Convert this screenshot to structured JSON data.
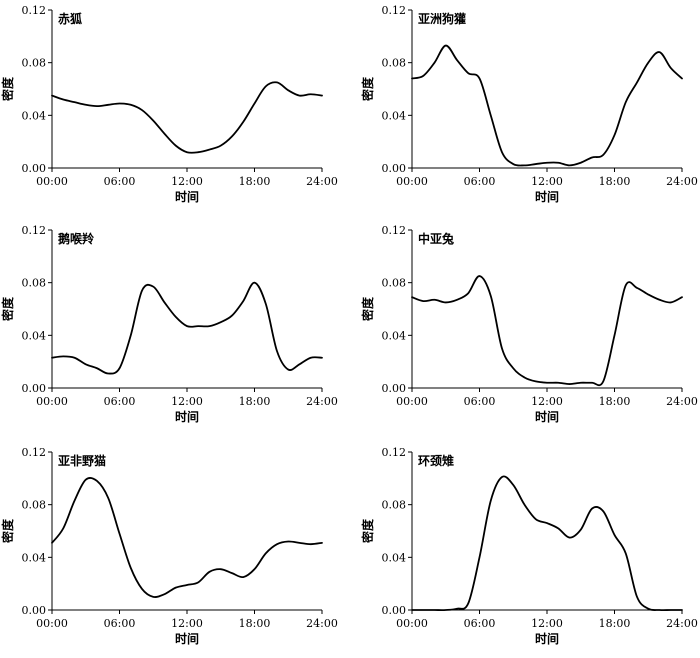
{
  "chart_data": [
    {
      "type": "line",
      "title": "赤狐",
      "xlabel": "时间",
      "ylabel": "密度",
      "xlim": [
        0,
        24
      ],
      "ylim": [
        0,
        0.12
      ],
      "xticks": [
        "00:00",
        "06:00",
        "12:00",
        "18:00",
        "24:00"
      ],
      "yticks": [
        "0.00",
        "0.04",
        "0.08",
        "0.12"
      ],
      "grid": false,
      "x": [
        0,
        1,
        2,
        3,
        4,
        5,
        6,
        7,
        8,
        9,
        10,
        11,
        12,
        13,
        14,
        15,
        16,
        17,
        18,
        19,
        20,
        21,
        22,
        23,
        24
      ],
      "y": [
        0.055,
        0.052,
        0.05,
        0.048,
        0.047,
        0.048,
        0.049,
        0.048,
        0.044,
        0.036,
        0.026,
        0.017,
        0.012,
        0.012,
        0.014,
        0.017,
        0.024,
        0.035,
        0.049,
        0.062,
        0.065,
        0.059,
        0.055,
        0.056,
        0.055
      ]
    },
    {
      "type": "line",
      "title": "亚洲狗獾",
      "xlabel": "时间",
      "ylabel": "密度",
      "xlim": [
        0,
        24
      ],
      "ylim": [
        0,
        0.12
      ],
      "xticks": [
        "00:00",
        "06:00",
        "12:00",
        "18:00",
        "24:00"
      ],
      "yticks": [
        "0.00",
        "0.04",
        "0.08",
        "0.12"
      ],
      "grid": false,
      "x": [
        0,
        1,
        2,
        3,
        4,
        5,
        6,
        7,
        8,
        9,
        10,
        11,
        12,
        13,
        14,
        15,
        16,
        17,
        18,
        19,
        20,
        21,
        22,
        23,
        24
      ],
      "y": [
        0.068,
        0.07,
        0.08,
        0.093,
        0.082,
        0.072,
        0.068,
        0.04,
        0.012,
        0.003,
        0.002,
        0.003,
        0.004,
        0.004,
        0.002,
        0.004,
        0.008,
        0.01,
        0.025,
        0.05,
        0.065,
        0.08,
        0.088,
        0.076,
        0.068
      ]
    },
    {
      "type": "line",
      "title": "鹅喉羚",
      "xlabel": "时间",
      "ylabel": "密度",
      "xlim": [
        0,
        24
      ],
      "ylim": [
        0,
        0.12
      ],
      "xticks": [
        "00:00",
        "06:00",
        "12:00",
        "18:00",
        "24:00"
      ],
      "yticks": [
        "0.00",
        "0.04",
        "0.08",
        "0.12"
      ],
      "grid": false,
      "x": [
        0,
        1,
        2,
        3,
        4,
        5,
        6,
        7,
        8,
        9,
        10,
        11,
        12,
        13,
        14,
        15,
        16,
        17,
        18,
        19,
        20,
        21,
        22,
        23,
        24
      ],
      "y": [
        0.023,
        0.024,
        0.023,
        0.018,
        0.015,
        0.011,
        0.015,
        0.04,
        0.074,
        0.077,
        0.065,
        0.054,
        0.047,
        0.047,
        0.047,
        0.05,
        0.055,
        0.066,
        0.08,
        0.064,
        0.028,
        0.014,
        0.018,
        0.023,
        0.023
      ]
    },
    {
      "type": "line",
      "title": "中亚兔",
      "xlabel": "时间",
      "ylabel": "密度",
      "xlim": [
        0,
        24
      ],
      "ylim": [
        0,
        0.12
      ],
      "xticks": [
        "00:00",
        "06:00",
        "12:00",
        "18:00",
        "24:00"
      ],
      "yticks": [
        "0.00",
        "0.04",
        "0.08",
        "0.12"
      ],
      "grid": false,
      "x": [
        0,
        1,
        2,
        3,
        4,
        5,
        6,
        7,
        8,
        9,
        10,
        11,
        12,
        13,
        14,
        15,
        16,
        17,
        18,
        19,
        20,
        21,
        22,
        23,
        24
      ],
      "y": [
        0.069,
        0.066,
        0.067,
        0.065,
        0.067,
        0.072,
        0.085,
        0.07,
        0.03,
        0.015,
        0.008,
        0.005,
        0.004,
        0.004,
        0.003,
        0.004,
        0.004,
        0.005,
        0.04,
        0.078,
        0.076,
        0.071,
        0.067,
        0.065,
        0.069
      ]
    },
    {
      "type": "line",
      "title": "亚非野猫",
      "xlabel": "时间",
      "ylabel": "密度",
      "xlim": [
        0,
        24
      ],
      "ylim": [
        0,
        0.12
      ],
      "xticks": [
        "00:00",
        "06:00",
        "12:00",
        "18:00",
        "24:00"
      ],
      "yticks": [
        "0.00",
        "0.04",
        "0.08",
        "0.12"
      ],
      "grid": false,
      "x": [
        0,
        1,
        2,
        3,
        4,
        5,
        6,
        7,
        8,
        9,
        10,
        11,
        12,
        13,
        14,
        15,
        16,
        17,
        18,
        19,
        20,
        21,
        22,
        23,
        24
      ],
      "y": [
        0.051,
        0.062,
        0.083,
        0.099,
        0.098,
        0.085,
        0.058,
        0.032,
        0.016,
        0.01,
        0.012,
        0.017,
        0.019,
        0.021,
        0.029,
        0.031,
        0.028,
        0.025,
        0.031,
        0.043,
        0.05,
        0.052,
        0.051,
        0.05,
        0.051
      ]
    },
    {
      "type": "line",
      "title": "环颈雉",
      "xlabel": "时间",
      "ylabel": "密度",
      "xlim": [
        0,
        24
      ],
      "ylim": [
        0,
        0.12
      ],
      "xticks": [
        "00:00",
        "06:00",
        "12:00",
        "18:00",
        "24:00"
      ],
      "yticks": [
        "0.00",
        "0.04",
        "0.08",
        "0.12"
      ],
      "grid": false,
      "x": [
        0,
        1,
        2,
        3,
        4,
        5,
        6,
        7,
        8,
        9,
        10,
        11,
        12,
        13,
        14,
        15,
        16,
        17,
        18,
        19,
        20,
        21,
        22,
        23,
        24
      ],
      "y": [
        0,
        0,
        0,
        0,
        0.001,
        0.005,
        0.04,
        0.083,
        0.101,
        0.095,
        0.08,
        0.069,
        0.066,
        0.062,
        0.055,
        0.061,
        0.077,
        0.075,
        0.057,
        0.043,
        0.01,
        0.001,
        0,
        0,
        0
      ]
    }
  ]
}
